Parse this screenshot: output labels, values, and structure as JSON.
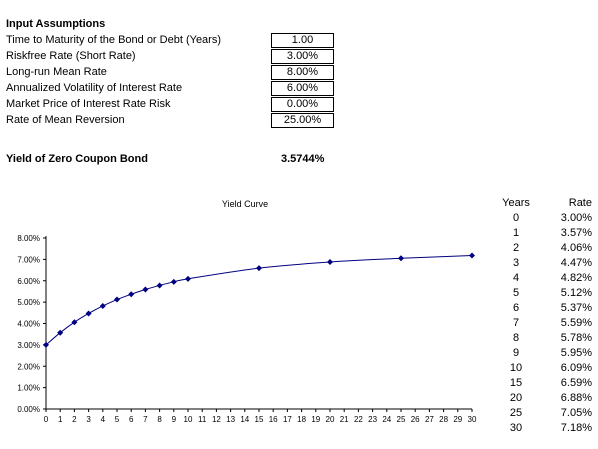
{
  "assumptions": {
    "title": "Input Assumptions",
    "rows": [
      {
        "label": "Time to Maturity of the Bond or Debt (Years)",
        "value": "1.00"
      },
      {
        "label": "Riskfree Rate (Short Rate)",
        "value": "3.00%"
      },
      {
        "label": "Long-run Mean Rate",
        "value": "8.00%"
      },
      {
        "label": "Annualized Volatility of Interest Rate",
        "value": "6.00%"
      },
      {
        "label": "Market Price of Interest Rate Risk",
        "value": "0.00%"
      },
      {
        "label": "Rate of Mean Reversion",
        "value": "25.00%"
      }
    ]
  },
  "result": {
    "label": "Yield of Zero Coupon Bond",
    "value": "3.5744%"
  },
  "rate_table": {
    "headers": {
      "years": "Years",
      "rate": "Rate"
    },
    "rows": [
      {
        "years": "0",
        "rate": "3.00%"
      },
      {
        "years": "1",
        "rate": "3.57%"
      },
      {
        "years": "2",
        "rate": "4.06%"
      },
      {
        "years": "3",
        "rate": "4.47%"
      },
      {
        "years": "4",
        "rate": "4.82%"
      },
      {
        "years": "5",
        "rate": "5.12%"
      },
      {
        "years": "6",
        "rate": "5.37%"
      },
      {
        "years": "7",
        "rate": "5.59%"
      },
      {
        "years": "8",
        "rate": "5.78%"
      },
      {
        "years": "9",
        "rate": "5.95%"
      },
      {
        "years": "10",
        "rate": "6.09%"
      },
      {
        "years": "15",
        "rate": "6.59%"
      },
      {
        "years": "20",
        "rate": "6.88%"
      },
      {
        "years": "25",
        "rate": "7.05%"
      },
      {
        "years": "30",
        "rate": "7.18%"
      }
    ]
  },
  "chart_data": {
    "type": "line",
    "title": "Yield Curve",
    "xlabel": "",
    "ylabel": "",
    "x": [
      0,
      1,
      2,
      3,
      4,
      5,
      6,
      7,
      8,
      9,
      10,
      15,
      20,
      25,
      30
    ],
    "series": [
      {
        "values": [
          3.0,
          3.57,
          4.06,
          4.47,
          4.82,
          5.12,
          5.37,
          5.59,
          5.78,
          5.95,
          6.09,
          6.59,
          6.88,
          7.05,
          7.18
        ]
      }
    ],
    "xlim": [
      0,
      30
    ],
    "ylim": [
      0,
      8
    ],
    "x_ticks": [
      0,
      1,
      2,
      3,
      4,
      5,
      6,
      7,
      8,
      9,
      10,
      11,
      12,
      13,
      14,
      15,
      16,
      17,
      18,
      19,
      20,
      21,
      22,
      23,
      24,
      25,
      26,
      27,
      28,
      29,
      30
    ],
    "y_ticks": [
      "0.00%",
      "1.00%",
      "2.00%",
      "3.00%",
      "4.00%",
      "5.00%",
      "6.00%",
      "7.00%",
      "8.00%"
    ],
    "y_tick_values": [
      0,
      1,
      2,
      3,
      4,
      5,
      6,
      7,
      8
    ],
    "grid": false,
    "legend": "none",
    "line_color": "#000080",
    "marker": "diamond",
    "marker_color": "#000080"
  }
}
